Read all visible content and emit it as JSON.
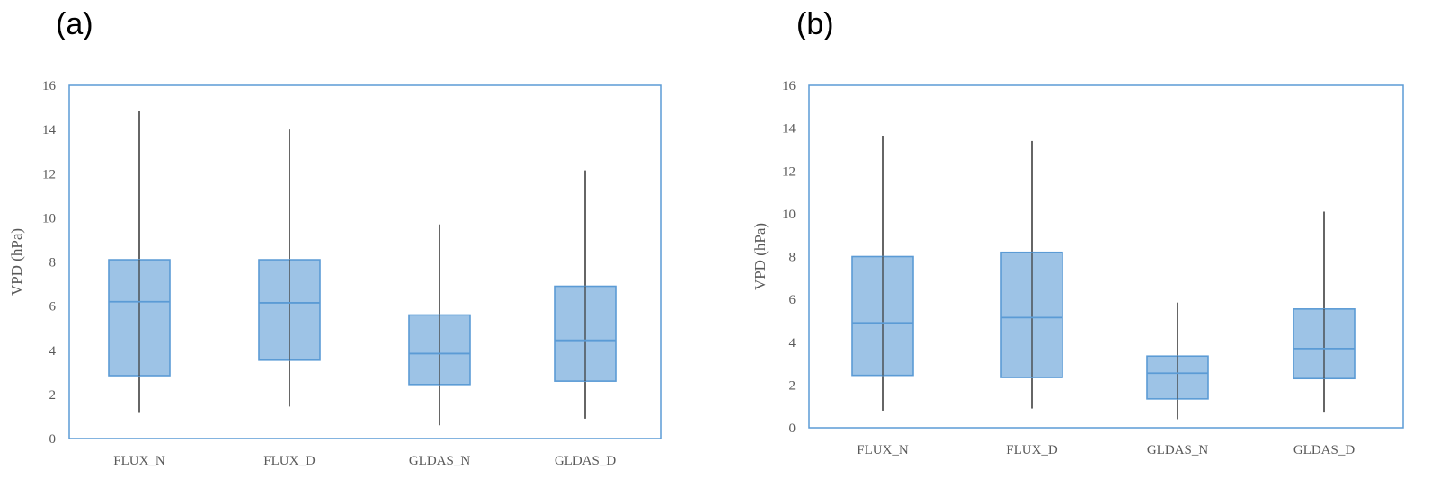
{
  "chart_data": [
    {
      "type": "box",
      "panel_label": "(a)",
      "ylabel": "VPD (hPa)",
      "ylim": [
        0,
        16
      ],
      "yticks": [
        "0",
        "2",
        "4",
        "6",
        "8",
        "10",
        "12",
        "14",
        "16"
      ],
      "categories": [
        "FLUX_N",
        "FLUX_D",
        "GLDAS_N",
        "GLDAS_D"
      ],
      "boxes": [
        {
          "min": 1.2,
          "q1": 2.85,
          "median": 6.2,
          "q3": 8.1,
          "max": 14.85
        },
        {
          "min": 1.45,
          "q1": 3.55,
          "median": 6.15,
          "q3": 8.1,
          "max": 14.0
        },
        {
          "min": 0.6,
          "q1": 2.45,
          "median": 3.85,
          "q3": 5.6,
          "max": 9.7
        },
        {
          "min": 0.9,
          "q1": 2.6,
          "median": 4.45,
          "q3": 6.9,
          "max": 12.15
        }
      ],
      "grid": false,
      "colors": {
        "box_fill": "#9dc3e6",
        "box_edge": "#5b9bd5",
        "whisker": "#404040",
        "frame": "#5b9bd5"
      }
    },
    {
      "type": "box",
      "panel_label": "(b)",
      "ylabel": "VPD (hPa)",
      "ylim": [
        0,
        16
      ],
      "yticks": [
        "0",
        "2",
        "4",
        "6",
        "8",
        "10",
        "12",
        "14",
        "16"
      ],
      "categories": [
        "FLUX_N",
        "FLUX_D",
        "GLDAS_N",
        "GLDAS_D"
      ],
      "boxes": [
        {
          "min": 0.8,
          "q1": 2.45,
          "median": 4.9,
          "q3": 8.0,
          "max": 13.65
        },
        {
          "min": 0.9,
          "q1": 2.35,
          "median": 5.15,
          "q3": 8.2,
          "max": 13.4
        },
        {
          "min": 0.4,
          "q1": 1.35,
          "median": 2.55,
          "q3": 3.35,
          "max": 5.85
        },
        {
          "min": 0.75,
          "q1": 2.3,
          "median": 3.7,
          "q3": 5.55,
          "max": 10.1
        }
      ],
      "grid": false,
      "colors": {
        "box_fill": "#9dc3e6",
        "box_edge": "#5b9bd5",
        "whisker": "#404040",
        "frame": "#5b9bd5"
      }
    }
  ]
}
